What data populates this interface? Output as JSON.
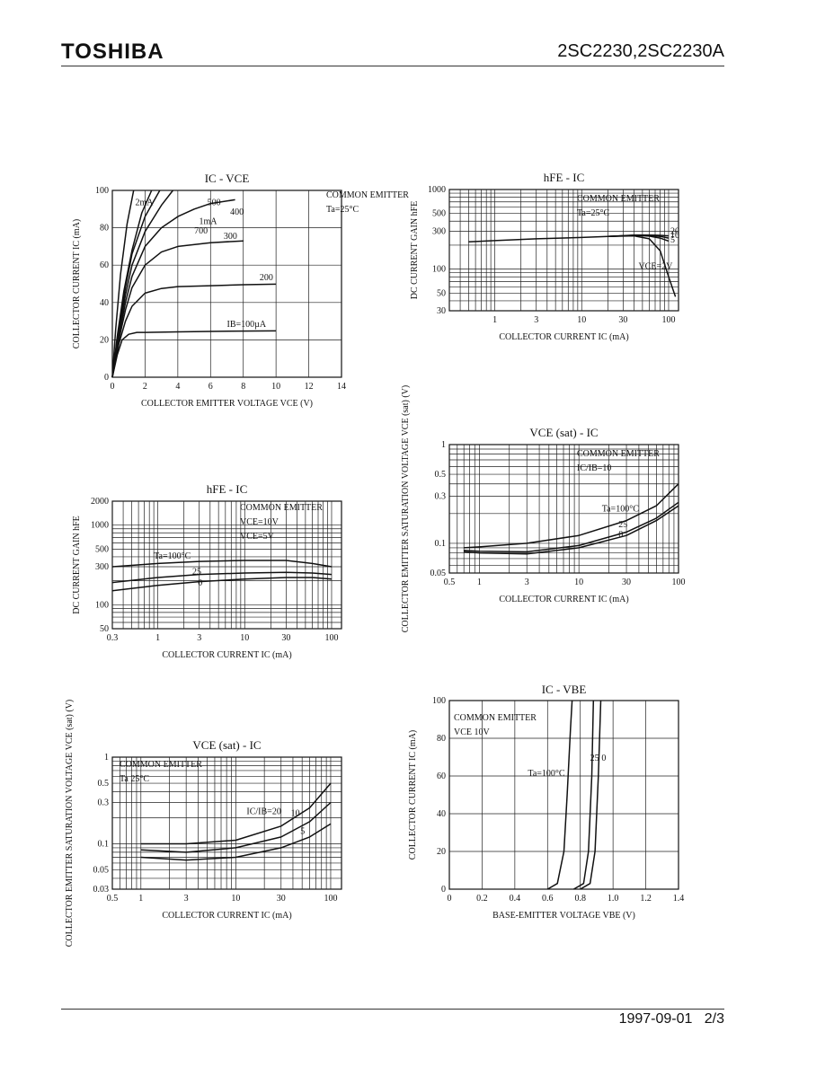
{
  "header": {
    "logo": "TOSHIBA",
    "part_number": "2SC2230,2SC2230A"
  },
  "footer": {
    "date": "1997-09-01",
    "page": "2/3"
  },
  "chart_data": [
    {
      "id": "ic-vce",
      "type": "line",
      "title": "IC - VCE",
      "xlabel": "COLLECTOR EMITTER VOLTAGE VCE (V)",
      "ylabel": "COLLECTOR CURRENT IC (mA)",
      "xlim": [
        0,
        14
      ],
      "ylim": [
        0,
        100
      ],
      "xscale": "linear",
      "yscale": "linear",
      "xticks": [
        0,
        2,
        4,
        6,
        8,
        10,
        12,
        14
      ],
      "yticks": [
        0,
        20,
        40,
        60,
        80,
        100
      ],
      "ytick_labels": [
        "0",
        "20",
        "40",
        "60",
        "80",
        "100"
      ],
      "legend_text": [
        "COMMON EMITTER",
        "Ta=25°C"
      ],
      "series": [
        {
          "name": "IB=100µA",
          "x": [
            0,
            0.3,
            0.6,
            1.0,
            1.5,
            2,
            4,
            6,
            8,
            10
          ],
          "y": [
            0,
            12,
            20,
            23,
            24,
            24,
            24.3,
            24.5,
            24.7,
            24.8
          ]
        },
        {
          "name": "200",
          "x": [
            0,
            0.4,
            0.8,
            1.2,
            2,
            3,
            4,
            6,
            8,
            10
          ],
          "y": [
            0,
            18,
            30,
            38,
            45,
            47.5,
            48.5,
            49,
            49.5,
            49.8
          ]
        },
        {
          "name": "300",
          "x": [
            0,
            0.4,
            0.8,
            1.2,
            2,
            3,
            4,
            6,
            8
          ],
          "y": [
            0,
            20,
            36,
            48,
            60,
            67,
            70,
            72,
            73
          ]
        },
        {
          "name": "400",
          "x": [
            0,
            0.4,
            0.8,
            1.2,
            2,
            3,
            4,
            5,
            6,
            7.5
          ],
          "y": [
            0,
            22,
            40,
            54,
            70,
            80,
            86,
            90,
            93,
            95
          ]
        },
        {
          "name": "500",
          "x": [
            0,
            0.4,
            0.8,
            1.2,
            2,
            3,
            3.7
          ],
          "y": [
            0,
            24,
            44,
            60,
            78,
            92,
            100
          ]
        },
        {
          "name": "700",
          "x": [
            0,
            0.4,
            0.8,
            1.2,
            2,
            2.9
          ],
          "y": [
            0,
            26,
            48,
            66,
            86,
            100
          ]
        },
        {
          "name": "1mA",
          "x": [
            0,
            0.3,
            0.7,
            1.2,
            1.8,
            2.4
          ],
          "y": [
            0,
            22,
            46,
            68,
            88,
            100
          ]
        },
        {
          "name": "2mA",
          "x": [
            0,
            0.2,
            0.5,
            0.9,
            1.3
          ],
          "y": [
            0,
            25,
            55,
            82,
            100
          ]
        }
      ],
      "curve_labels": [
        "2mA",
        "500",
        "400",
        "1mA",
        "700",
        "300",
        "200",
        "IB=100µA"
      ]
    },
    {
      "id": "hfe-ic-1",
      "type": "line",
      "title": "hFE - IC",
      "xlabel": "COLLECTOR CURRENT IC (mA)",
      "ylabel": "DC CURRENT GAIN hFE",
      "xscale": "log",
      "yscale": "log",
      "xlim": [
        0.3,
        130
      ],
      "ylim": [
        30,
        1000
      ],
      "xticks": [
        1,
        3,
        10,
        30,
        100
      ],
      "yticks": [
        30,
        50,
        100,
        300,
        500,
        1000
      ],
      "legend_text": [
        "COMMON EMITTER",
        "Ta=25°C"
      ],
      "series": [
        {
          "name": "VCE=2V",
          "x": [
            0.5,
            1,
            3,
            10,
            20,
            40,
            60,
            80,
            100,
            120
          ],
          "y": [
            220,
            228,
            240,
            250,
            258,
            262,
            240,
            170,
            80,
            45
          ]
        },
        {
          "name": "5",
          "x": [
            20,
            40,
            60,
            80,
            100
          ],
          "y": [
            258,
            265,
            260,
            245,
            225
          ]
        },
        {
          "name": "10",
          "x": [
            20,
            40,
            60,
            80,
            100
          ],
          "y": [
            258,
            266,
            265,
            258,
            245
          ]
        },
        {
          "name": "20",
          "x": [
            20,
            40,
            60,
            80,
            100
          ],
          "y": [
            258,
            267,
            268,
            266,
            262
          ]
        }
      ],
      "curve_labels": [
        "20",
        "10",
        "5",
        "VCE=2V"
      ]
    },
    {
      "id": "vcesat-ic-1",
      "type": "line",
      "title": "VCE (sat) - IC",
      "xlabel": "COLLECTOR CURRENT IC (mA)",
      "ylabel": "COLLECTOR EMITTER SATURATION VOLTAGE VCE (sat) (V)",
      "xscale": "log",
      "yscale": "log",
      "xlim": [
        0.5,
        100
      ],
      "ylim": [
        0.05,
        1
      ],
      "xticks": [
        0.5,
        1,
        3,
        10,
        30,
        100
      ],
      "yticks": [
        0.05,
        0.1,
        0.3,
        0.5,
        1
      ],
      "legend_text": [
        "COMMON EMITTER",
        "IC/IB=10"
      ],
      "series": [
        {
          "name": "Ta=100°C",
          "x": [
            0.7,
            1,
            3,
            10,
            30,
            60,
            100
          ],
          "y": [
            0.09,
            0.092,
            0.1,
            0.12,
            0.17,
            0.24,
            0.4
          ]
        },
        {
          "name": "25",
          "x": [
            0.7,
            1,
            3,
            10,
            30,
            60,
            100
          ],
          "y": [
            0.085,
            0.083,
            0.082,
            0.095,
            0.13,
            0.18,
            0.26
          ]
        },
        {
          "name": "0",
          "x": [
            0.7,
            1,
            3,
            10,
            30,
            60,
            100
          ],
          "y": [
            0.082,
            0.08,
            0.078,
            0.09,
            0.12,
            0.17,
            0.24
          ]
        }
      ],
      "curve_labels": [
        "Ta=100°C",
        "25",
        "0"
      ]
    },
    {
      "id": "hfe-ic-2",
      "type": "line",
      "title": "hFE - IC",
      "xlabel": "COLLECTOR CURRENT IC (mA)",
      "ylabel": "DC CURRENT GAIN hFE",
      "xscale": "log",
      "yscale": "log",
      "xlim": [
        0.3,
        130
      ],
      "ylim": [
        50,
        2000
      ],
      "xticks": [
        0.3,
        1,
        3,
        10,
        30,
        100
      ],
      "yticks": [
        50,
        100,
        300,
        500,
        1000,
        2000
      ],
      "legend_text": [
        "COMMON EMITTER",
        "VCE=10V",
        "VCE=5V"
      ],
      "series": [
        {
          "name": "Ta=100°C",
          "x": [
            0.3,
            1,
            3,
            10,
            30,
            60,
            100
          ],
          "y": [
            300,
            330,
            350,
            360,
            360,
            330,
            300
          ]
        },
        {
          "name": "25",
          "x": [
            0.3,
            1,
            3,
            10,
            30,
            60,
            100
          ],
          "y": [
            190,
            220,
            240,
            250,
            255,
            250,
            240
          ]
        },
        {
          "name": "0",
          "x": [
            0.3,
            1,
            3,
            10,
            30,
            60,
            100
          ],
          "y": [
            150,
            175,
            195,
            210,
            220,
            220,
            210
          ]
        }
      ],
      "curve_labels": [
        "Ta=100°C",
        "25",
        "0"
      ]
    },
    {
      "id": "ic-vbe",
      "type": "line",
      "title": "IC - VBE",
      "xlabel": "BASE-EMITTER VOLTAGE VBE (V)",
      "ylabel": "COLLECTOR CURRENT IC (mA)",
      "xscale": "linear",
      "yscale": "linear",
      "xlim": [
        0,
        1.4
      ],
      "ylim": [
        0,
        100
      ],
      "xticks": [
        0,
        0.2,
        0.4,
        0.6,
        0.8,
        1.0,
        1.2,
        1.4
      ],
      "xtick_labels": [
        "0",
        "0.2",
        "0.4",
        "0.6",
        "0.8",
        "1.0",
        "1.2",
        "1.4"
      ],
      "yticks": [
        0,
        20,
        40,
        60,
        80,
        100
      ],
      "legend_text": [
        "COMMON EMITTER",
        "VCE 10V"
      ],
      "series": [
        {
          "name": "Ta=100°C",
          "x": [
            0.6,
            0.66,
            0.7,
            0.72,
            0.74,
            0.75
          ],
          "y": [
            0,
            3,
            20,
            50,
            85,
            100
          ]
        },
        {
          "name": "25",
          "x": [
            0.76,
            0.82,
            0.85,
            0.87,
            0.88
          ],
          "y": [
            0,
            3,
            20,
            60,
            100
          ]
        },
        {
          "name": "0",
          "x": [
            0.8,
            0.86,
            0.89,
            0.91,
            0.925
          ],
          "y": [
            0,
            3,
            20,
            60,
            100
          ]
        }
      ],
      "curve_labels": [
        "Ta=100°C",
        "25",
        "0"
      ]
    },
    {
      "id": "vcesat-ic-2",
      "type": "line",
      "title": "VCE (sat) - IC",
      "xlabel": "COLLECTOR CURRENT IC (mA)",
      "ylabel": "COLLECTOR EMITTER SATURATION VOLTAGE VCE (sat) (V)",
      "xscale": "log",
      "yscale": "log",
      "xlim": [
        0.5,
        130
      ],
      "ylim": [
        0.03,
        1
      ],
      "xticks": [
        0.5,
        1,
        3,
        10,
        30,
        100
      ],
      "yticks": [
        0.03,
        0.05,
        0.1,
        0.3,
        0.5,
        1
      ],
      "legend_text": [
        "COMMON EMITTER",
        "Ta 25°C"
      ],
      "series": [
        {
          "name": "IC/IB=20",
          "x": [
            1,
            3,
            10,
            30,
            60,
            100
          ],
          "y": [
            0.1,
            0.1,
            0.11,
            0.16,
            0.26,
            0.5
          ]
        },
        {
          "name": "10",
          "x": [
            1,
            3,
            10,
            30,
            60,
            100
          ],
          "y": [
            0.085,
            0.08,
            0.09,
            0.12,
            0.18,
            0.3
          ]
        },
        {
          "name": "5",
          "x": [
            1,
            3,
            10,
            30,
            60,
            100
          ],
          "y": [
            0.07,
            0.065,
            0.07,
            0.09,
            0.12,
            0.17
          ]
        }
      ],
      "curve_labels": [
        "IC/IB=20",
        "10",
        "5"
      ]
    }
  ]
}
